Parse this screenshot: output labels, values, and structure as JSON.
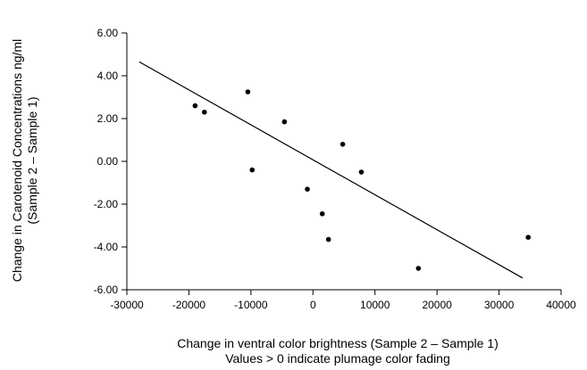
{
  "chart_data": {
    "type": "scatter",
    "xlabel": "Change in ventral color brightness (Sample 2 – Sample 1)",
    "xlabel_line2": "Values > 0 indicate plumage color fading",
    "ylabel": "Change in Carotenoid Concentrations ng/ml",
    "ylabel_line2": "(Sample 2 – Sample 1)",
    "xlim": [
      -30000,
      40000
    ],
    "ylim": [
      -6,
      6
    ],
    "x_ticks": [
      -30000,
      -20000,
      -10000,
      0,
      10000,
      20000,
      30000,
      40000
    ],
    "x_tick_labels": [
      "-30000",
      "-20000",
      "-10000",
      "0",
      "10000",
      "20000",
      "30000",
      "40000"
    ],
    "y_ticks": [
      6,
      4,
      2,
      0,
      -2,
      -4,
      -6
    ],
    "y_tick_labels": [
      "6.00",
      "4.00",
      "2.00",
      "0.00",
      "-2.00",
      "-4.00",
      "-6.00"
    ],
    "grid": false,
    "legend": "none",
    "points": [
      {
        "x": -19000,
        "y": 2.6
      },
      {
        "x": -17500,
        "y": 2.3
      },
      {
        "x": -10500,
        "y": 3.25
      },
      {
        "x": -9800,
        "y": -0.4
      },
      {
        "x": -4600,
        "y": 1.85
      },
      {
        "x": -900,
        "y": -1.3
      },
      {
        "x": 1500,
        "y": -2.45
      },
      {
        "x": 2500,
        "y": -3.65
      },
      {
        "x": 4800,
        "y": 0.8
      },
      {
        "x": 7800,
        "y": -0.5
      },
      {
        "x": 17000,
        "y": -5.0
      },
      {
        "x": 34700,
        "y": -3.55
      }
    ],
    "trendline": {
      "x": [
        -28000,
        33800
      ],
      "y": [
        4.65,
        -5.45
      ]
    },
    "colors": {
      "points": "#000000",
      "line": "#000000",
      "axes": "#000000"
    }
  }
}
